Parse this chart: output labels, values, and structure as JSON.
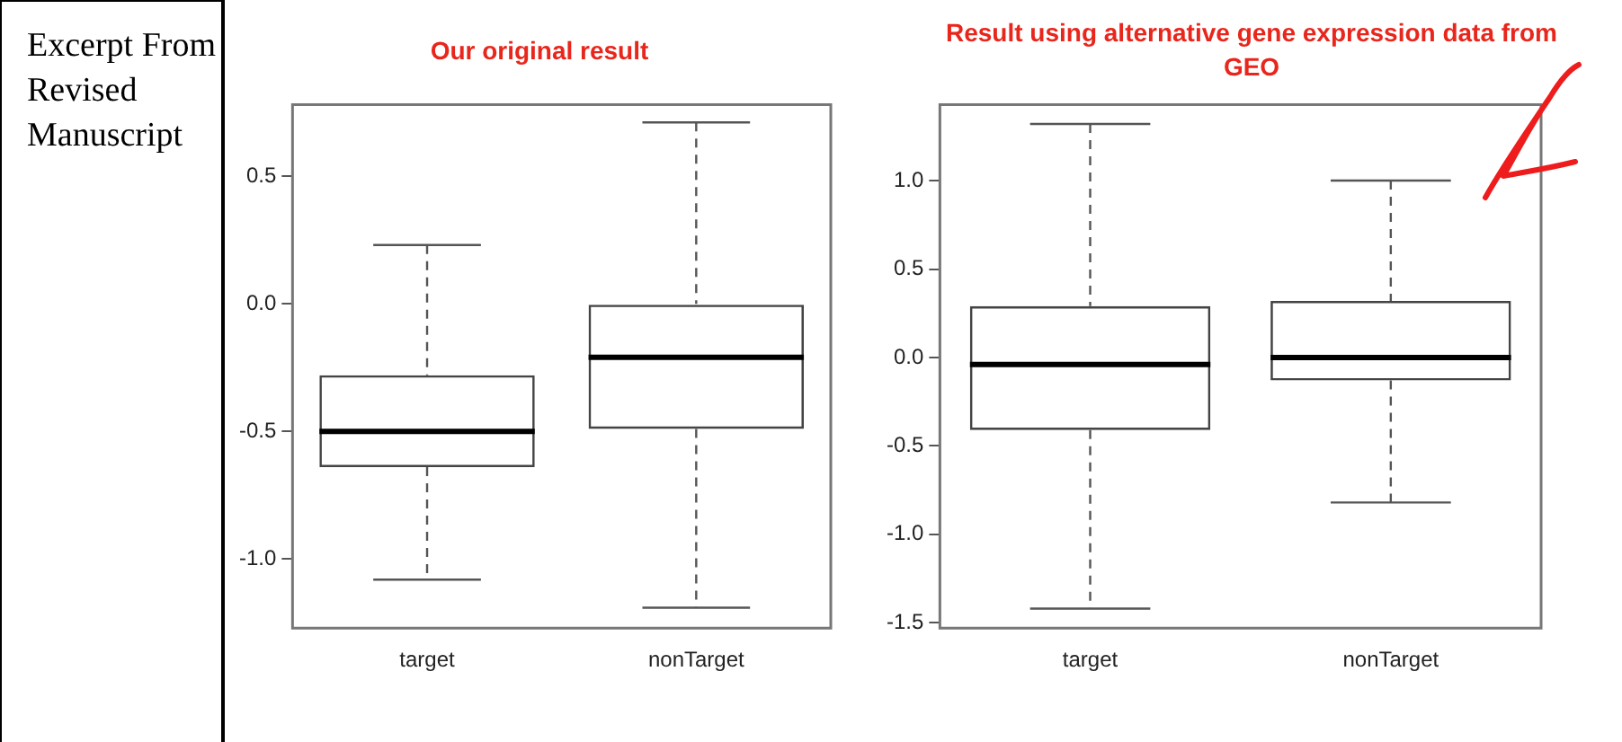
{
  "chart_data": [
    {
      "type": "box",
      "title": "Our original result",
      "annotations": [
        "Excerpt From Revised Manuscript"
      ],
      "categories": [
        "target",
        "nonTarget"
      ],
      "boxes": [
        {
          "low": -1.08,
          "q1": -0.64,
          "median": -0.5,
          "q3": -0.28,
          "high": 0.23
        },
        {
          "low": -1.19,
          "q1": -0.49,
          "median": -0.21,
          "q3": 0.0,
          "high": 0.71
        }
      ],
      "ylim": [
        -1.27,
        0.78
      ],
      "yticks": [
        {
          "value": -1,
          "label": "-1.0"
        },
        {
          "value": -0.5,
          "label": "-0.5"
        },
        {
          "value": 0,
          "label": "0.0"
        },
        {
          "value": 0.5,
          "label": "0.5"
        }
      ],
      "grid": false,
      "legend": false
    },
    {
      "type": "box",
      "title": "Result using alternative gene expression data from GEO",
      "categories": [
        "target",
        "nonTarget"
      ],
      "boxes": [
        {
          "low": -1.42,
          "q1": -0.41,
          "median": -0.04,
          "q3": 0.29,
          "high": 1.32
        },
        {
          "low": -0.82,
          "q1": -0.13,
          "median": 0.0,
          "q3": 0.32,
          "high": 1.0
        }
      ],
      "ylim": [
        -1.53,
        1.43
      ],
      "yticks": [
        {
          "value": -1.5,
          "label": "-1.5"
        },
        {
          "value": -1,
          "label": "-1.0"
        },
        {
          "value": -0.5,
          "label": "-0.5"
        },
        {
          "value": 0,
          "label": "0.0"
        },
        {
          "value": 0.5,
          "label": "0.5"
        },
        {
          "value": 1,
          "label": "1.0"
        }
      ],
      "grid": false,
      "legend": false
    }
  ]
}
